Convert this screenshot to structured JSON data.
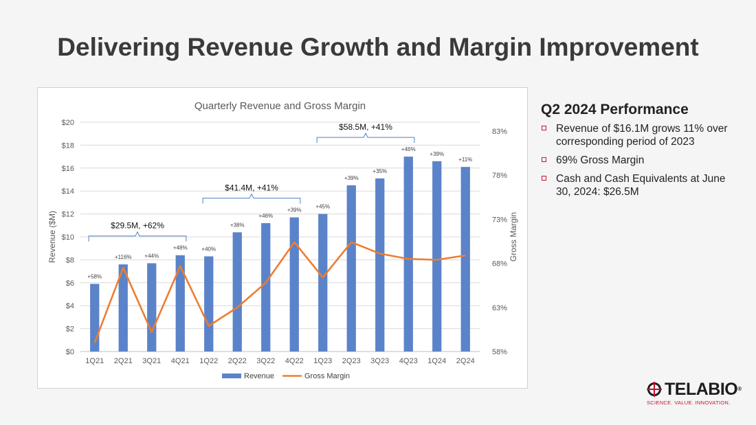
{
  "slide": {
    "title": "Delivering Revenue Growth and Margin Improvement"
  },
  "side_panel": {
    "heading": "Q2 2024 Performance",
    "bullets": [
      "Revenue of $16.1M grows 11% over corresponding period of 2023",
      "69% Gross Margin",
      "Cash and Cash Equivalents at June 30, 2024: $26.5M"
    ]
  },
  "logo": {
    "name": "TELABIO",
    "tagline": "SCIENCE. VALUE. INNOVATION."
  },
  "colors": {
    "bar": "#5b83c9",
    "line": "#ed7d31",
    "bracket": "#4f7fc7",
    "accent": "#c8102e"
  },
  "chart_data": {
    "type": "bar",
    "title": "Quarterly Revenue and Gross Margin",
    "ylabel": "Revenue ($M)",
    "y2label": "Gross Margin",
    "categories": [
      "1Q21",
      "2Q21",
      "3Q21",
      "4Q21",
      "1Q22",
      "2Q22",
      "3Q22",
      "4Q22",
      "1Q23",
      "2Q23",
      "3Q23",
      "4Q23",
      "1Q24",
      "2Q24"
    ],
    "ylim": [
      0,
      20
    ],
    "yticks": [
      "$0",
      "$2",
      "$4",
      "$6",
      "$8",
      "$10",
      "$12",
      "$14",
      "$16",
      "$18",
      "$20"
    ],
    "y2lim": [
      58,
      84
    ],
    "y2ticks": [
      "58%",
      "63%",
      "68%",
      "73%",
      "78%",
      "83%"
    ],
    "grid": true,
    "legend": "bottom",
    "series": [
      {
        "name": "Revenue",
        "type": "bar",
        "values": [
          5.9,
          7.6,
          7.7,
          8.4,
          8.3,
          10.4,
          11.2,
          11.7,
          12.0,
          14.5,
          15.1,
          17.0,
          16.6,
          16.1
        ],
        "labels": [
          "+58%",
          "+116%",
          "+44%",
          "+48%",
          "+40%",
          "+38%",
          "+46%",
          "+39%",
          "+45%",
          "+39%",
          "+35%",
          "+46%",
          "+39%",
          "+11%"
        ]
      },
      {
        "name": "Gross Margin",
        "type": "line",
        "values": [
          59.0,
          67.5,
          60.2,
          67.7,
          60.9,
          63.0,
          65.8,
          70.4,
          66.4,
          70.4,
          69.1,
          68.5,
          68.4,
          68.9
        ]
      }
    ],
    "annotations": [
      {
        "text": "$29.5M, +62%",
        "from": 0,
        "to": 3
      },
      {
        "text": "$41.4M, +41%",
        "from": 4,
        "to": 7
      },
      {
        "text": "$58.5M, +41%",
        "from": 8,
        "to": 11
      }
    ]
  }
}
